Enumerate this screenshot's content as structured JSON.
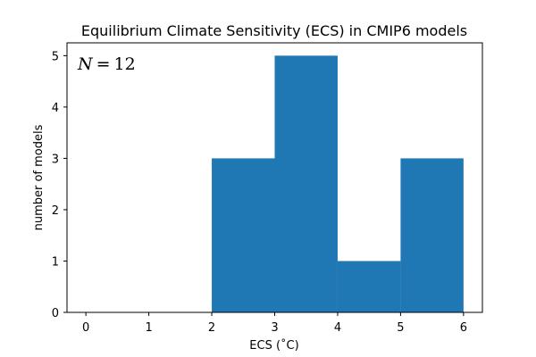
{
  "chart_data": {
    "type": "bar",
    "title": "Equilibrium Climate Sensitivity (ECS) in CMIP6 models",
    "xlabel": "ECS (˚C)",
    "ylabel": "number of models",
    "bins": [
      {
        "start": 2,
        "end": 3,
        "count": 3
      },
      {
        "start": 3,
        "end": 4,
        "count": 5
      },
      {
        "start": 4,
        "end": 5,
        "count": 1
      },
      {
        "start": 5,
        "end": 6,
        "count": 3
      }
    ],
    "xlim": [
      -0.3,
      6.3
    ],
    "ylim": [
      0,
      5.25
    ],
    "xticks": [
      0,
      1,
      2,
      3,
      4,
      5,
      6
    ],
    "yticks": [
      0,
      1,
      2,
      3,
      4,
      5
    ],
    "grid": false,
    "annotation": {
      "variable": "N",
      "relation": "=",
      "value": "12"
    },
    "bar_color": "#1f77b4"
  }
}
